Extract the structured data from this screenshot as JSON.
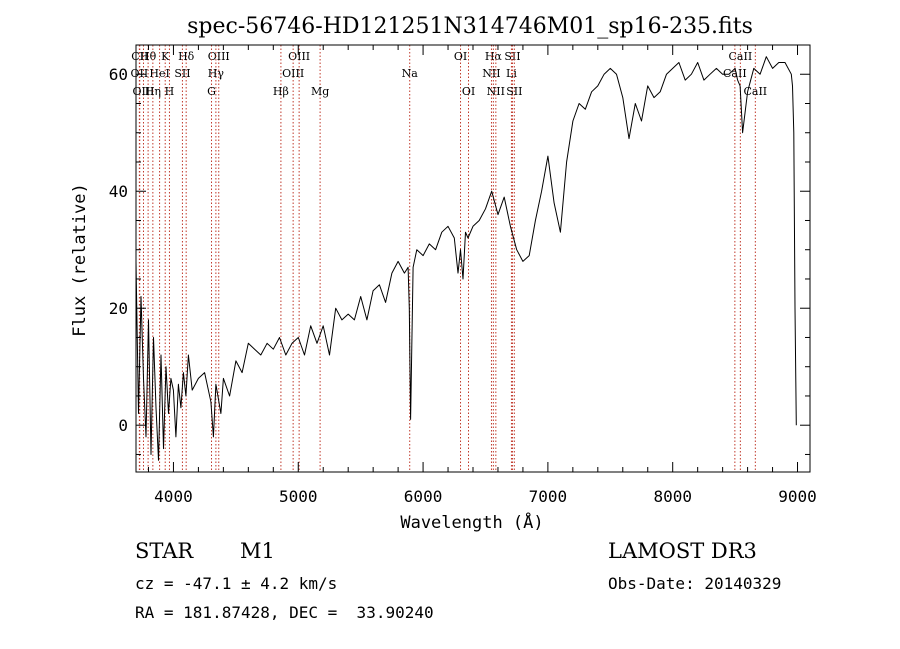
{
  "chart_data": {
    "type": "line",
    "title": "spec-56746-HD121251N314746M01_sp16-235.fits",
    "xlabel": "Wavelength (Å)",
    "ylabel": "Flux (relative)",
    "xlim": [
      3700,
      9100
    ],
    "ylim": [
      -8,
      65
    ],
    "xticks": [
      4000,
      5000,
      6000,
      7000,
      8000,
      9000
    ],
    "yticks": [
      0,
      20,
      40,
      60
    ],
    "series": [
      {
        "name": "flux",
        "x": [
          3700,
          3720,
          3740,
          3760,
          3780,
          3800,
          3820,
          3840,
          3860,
          3880,
          3900,
          3920,
          3940,
          3960,
          3980,
          4000,
          4020,
          4040,
          4060,
          4080,
          4100,
          4120,
          4150,
          4200,
          4250,
          4300,
          4320,
          4340,
          4380,
          4400,
          4450,
          4500,
          4550,
          4600,
          4650,
          4700,
          4750,
          4800,
          4850,
          4900,
          4950,
          5000,
          5050,
          5100,
          5150,
          5200,
          5250,
          5300,
          5350,
          5400,
          5450,
          5500,
          5550,
          5600,
          5650,
          5700,
          5750,
          5800,
          5850,
          5880,
          5890,
          5900,
          5920,
          5950,
          6000,
          6050,
          6100,
          6150,
          6200,
          6250,
          6280,
          6300,
          6320,
          6340,
          6360,
          6400,
          6450,
          6500,
          6550,
          6600,
          6650,
          6700,
          6750,
          6800,
          6850,
          6900,
          6950,
          7000,
          7050,
          7100,
          7150,
          7200,
          7250,
          7300,
          7350,
          7400,
          7450,
          7500,
          7550,
          7600,
          7650,
          7700,
          7750,
          7800,
          7850,
          7900,
          7950,
          8000,
          8050,
          8100,
          8150,
          8200,
          8250,
          8300,
          8350,
          8400,
          8450,
          8500,
          8520,
          8540,
          8560,
          8600,
          8650,
          8700,
          8750,
          8800,
          8850,
          8900,
          8950,
          8960,
          8970,
          8980,
          8990
        ],
        "values": [
          28,
          2,
          22,
          8,
          -2,
          18,
          -5,
          15,
          3,
          -6,
          12,
          -4,
          10,
          2,
          8,
          6,
          -2,
          7,
          3,
          9,
          5,
          12,
          6,
          8,
          9,
          4,
          -2,
          7,
          2,
          8,
          5,
          11,
          9,
          14,
          13,
          12,
          14,
          13,
          15,
          12,
          14,
          15,
          12,
          17,
          14,
          17,
          12,
          20,
          18,
          19,
          18,
          22,
          18,
          23,
          24,
          21,
          26,
          28,
          26,
          27,
          20,
          1,
          27,
          30,
          29,
          31,
          30,
          33,
          34,
          32,
          26,
          30,
          25,
          33,
          32,
          34,
          35,
          37,
          40,
          36,
          39,
          34,
          30,
          28,
          29,
          35,
          40,
          46,
          38,
          33,
          45,
          52,
          55,
          54,
          57,
          58,
          60,
          61,
          60,
          56,
          49,
          55,
          52,
          58,
          56,
          57,
          60,
          61,
          62,
          59,
          60,
          62,
          59,
          60,
          61,
          60,
          60,
          61,
          59,
          58,
          50,
          57,
          61,
          60,
          63,
          61,
          62,
          62,
          60,
          58,
          50,
          20,
          0
        ],
        "values_note": "approximate continuum trace read off the plot"
      }
    ],
    "lines": [
      {
        "label": "Hθ",
        "x": 3797,
        "row": 1
      },
      {
        "label": "CII",
        "x": 3730,
        "row": 1
      },
      {
        "label": "K",
        "x": 3934,
        "row": 1
      },
      {
        "label": "Hδ",
        "x": 4102,
        "row": 1
      },
      {
        "label": "OIII",
        "x": 4363,
        "row": 1
      },
      {
        "label": "OIII",
        "x": 5007,
        "row": 1
      },
      {
        "label": "OI",
        "x": 6300,
        "row": 1
      },
      {
        "label": "Hα",
        "x": 6563,
        "row": 1
      },
      {
        "label": "SII",
        "x": 6716,
        "row": 1
      },
      {
        "label": "CaII",
        "x": 8542,
        "row": 1
      },
      {
        "label": "OII",
        "x": 3727,
        "row": 2
      },
      {
        "label": "HeI",
        "x": 3889,
        "row": 2
      },
      {
        "label": "SII",
        "x": 4072,
        "row": 2
      },
      {
        "label": "Hγ",
        "x": 4340,
        "row": 2
      },
      {
        "label": "OIII",
        "x": 4959,
        "row": 2
      },
      {
        "label": "Na",
        "x": 5893,
        "row": 2
      },
      {
        "label": "NII",
        "x": 6548,
        "row": 2
      },
      {
        "label": "Li",
        "x": 6708,
        "row": 2
      },
      {
        "label": "CaII",
        "x": 8498,
        "row": 2
      },
      {
        "label": "OIII",
        "x": 3760,
        "row": 3
      },
      {
        "label": "Hη",
        "x": 3835,
        "row": 3
      },
      {
        "label": "H",
        "x": 3968,
        "row": 3
      },
      {
        "label": "G",
        "x": 4305,
        "row": 3
      },
      {
        "label": "Hβ",
        "x": 4861,
        "row": 3
      },
      {
        "label": "Mg",
        "x": 5175,
        "row": 3
      },
      {
        "label": "OI",
        "x": 6364,
        "row": 3
      },
      {
        "label": "NII",
        "x": 6583,
        "row": 3
      },
      {
        "label": "SII",
        "x": 6731,
        "row": 3
      },
      {
        "label": "CaII",
        "x": 8662,
        "row": 3
      }
    ],
    "line_color": "#c0392b",
    "spectrum_color": "#000000"
  },
  "info": {
    "class": "STAR",
    "subclass": "M1",
    "survey": "LAMOST DR3",
    "cz": "cz = -47.1 ± 4.2 km/s",
    "obs_date": "Obs-Date: 20140329",
    "coords": "RA = 181.87428, DEC =  33.90240"
  }
}
